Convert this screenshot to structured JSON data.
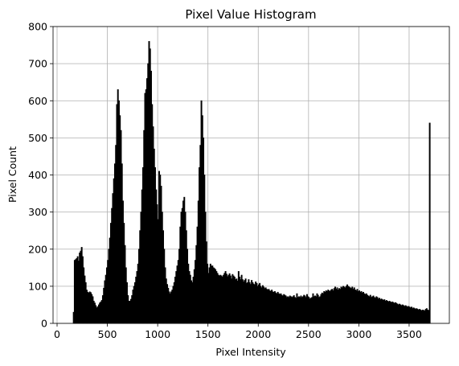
{
  "chart_data": {
    "type": "bar",
    "title": "Pixel Value Histogram",
    "xlabel": "Pixel Intensity",
    "ylabel": "Pixel Count",
    "xlim": [
      -40,
      3900
    ],
    "ylim": [
      0,
      800
    ],
    "grid": true,
    "xticks": [
      0,
      500,
      1000,
      1500,
      2000,
      2500,
      3000,
      3500
    ],
    "yticks": [
      0,
      100,
      200,
      300,
      400,
      500,
      600,
      700,
      800
    ],
    "bar_color": "#000000",
    "bin_width": 10,
    "bins": [
      [
        160,
        30
      ],
      [
        170,
        170
      ],
      [
        180,
        172
      ],
      [
        190,
        175
      ],
      [
        200,
        180
      ],
      [
        210,
        168
      ],
      [
        220,
        190
      ],
      [
        230,
        195
      ],
      [
        240,
        205
      ],
      [
        250,
        180
      ],
      [
        260,
        150
      ],
      [
        270,
        128
      ],
      [
        280,
        110
      ],
      [
        290,
        90
      ],
      [
        300,
        84
      ],
      [
        310,
        82
      ],
      [
        320,
        85
      ],
      [
        330,
        83
      ],
      [
        340,
        78
      ],
      [
        350,
        72
      ],
      [
        360,
        60
      ],
      [
        370,
        55
      ],
      [
        380,
        48
      ],
      [
        390,
        42
      ],
      [
        400,
        45
      ],
      [
        410,
        50
      ],
      [
        420,
        55
      ],
      [
        430,
        58
      ],
      [
        440,
        62
      ],
      [
        450,
        75
      ],
      [
        460,
        95
      ],
      [
        470,
        115
      ],
      [
        480,
        130
      ],
      [
        490,
        150
      ],
      [
        500,
        170
      ],
      [
        510,
        200
      ],
      [
        520,
        230
      ],
      [
        530,
        270
      ],
      [
        540,
        310
      ],
      [
        550,
        350
      ],
      [
        560,
        390
      ],
      [
        570,
        430
      ],
      [
        580,
        480
      ],
      [
        590,
        590
      ],
      [
        600,
        630
      ],
      [
        610,
        600
      ],
      [
        620,
        560
      ],
      [
        630,
        520
      ],
      [
        640,
        430
      ],
      [
        650,
        330
      ],
      [
        660,
        270
      ],
      [
        670,
        210
      ],
      [
        680,
        150
      ],
      [
        690,
        110
      ],
      [
        700,
        75
      ],
      [
        710,
        60
      ],
      [
        720,
        60
      ],
      [
        730,
        65
      ],
      [
        740,
        75
      ],
      [
        750,
        90
      ],
      [
        760,
        100
      ],
      [
        770,
        110
      ],
      [
        780,
        125
      ],
      [
        790,
        140
      ],
      [
        800,
        160
      ],
      [
        810,
        200
      ],
      [
        820,
        250
      ],
      [
        830,
        300
      ],
      [
        840,
        360
      ],
      [
        850,
        420
      ],
      [
        860,
        520
      ],
      [
        870,
        620
      ],
      [
        880,
        630
      ],
      [
        890,
        660
      ],
      [
        900,
        700
      ],
      [
        910,
        760
      ],
      [
        920,
        740
      ],
      [
        930,
        680
      ],
      [
        940,
        590
      ],
      [
        950,
        530
      ],
      [
        960,
        470
      ],
      [
        970,
        420
      ],
      [
        980,
        360
      ],
      [
        990,
        320
      ],
      [
        1000,
        280
      ],
      [
        1010,
        410
      ],
      [
        1020,
        400
      ],
      [
        1030,
        370
      ],
      [
        1040,
        300
      ],
      [
        1050,
        250
      ],
      [
        1060,
        200
      ],
      [
        1070,
        150
      ],
      [
        1080,
        120
      ],
      [
        1090,
        105
      ],
      [
        1100,
        95
      ],
      [
        1110,
        85
      ],
      [
        1120,
        80
      ],
      [
        1130,
        85
      ],
      [
        1140,
        90
      ],
      [
        1150,
        100
      ],
      [
        1160,
        110
      ],
      [
        1170,
        125
      ],
      [
        1180,
        140
      ],
      [
        1190,
        155
      ],
      [
        1200,
        170
      ],
      [
        1210,
        200
      ],
      [
        1220,
        260
      ],
      [
        1230,
        300
      ],
      [
        1240,
        310
      ],
      [
        1250,
        330
      ],
      [
        1260,
        340
      ],
      [
        1270,
        300
      ],
      [
        1280,
        250
      ],
      [
        1290,
        200
      ],
      [
        1300,
        160
      ],
      [
        1310,
        140
      ],
      [
        1320,
        130
      ],
      [
        1330,
        115
      ],
      [
        1340,
        110
      ],
      [
        1350,
        125
      ],
      [
        1360,
        145
      ],
      [
        1370,
        170
      ],
      [
        1380,
        210
      ],
      [
        1390,
        260
      ],
      [
        1400,
        330
      ],
      [
        1410,
        420
      ],
      [
        1420,
        480
      ],
      [
        1430,
        600
      ],
      [
        1440,
        560
      ],
      [
        1450,
        500
      ],
      [
        1460,
        400
      ],
      [
        1470,
        300
      ],
      [
        1480,
        220
      ],
      [
        1490,
        160
      ],
      [
        1500,
        135
      ],
      [
        1510,
        150
      ],
      [
        1520,
        160
      ],
      [
        1530,
        155
      ],
      [
        1540,
        155
      ],
      [
        1550,
        150
      ],
      [
        1560,
        148
      ],
      [
        1570,
        145
      ],
      [
        1580,
        140
      ],
      [
        1590,
        135
      ],
      [
        1600,
        130
      ],
      [
        1610,
        128
      ],
      [
        1620,
        130
      ],
      [
        1630,
        128
      ],
      [
        1640,
        125
      ],
      [
        1650,
        130
      ],
      [
        1660,
        135
      ],
      [
        1670,
        140
      ],
      [
        1680,
        133
      ],
      [
        1690,
        126
      ],
      [
        1700,
        130
      ],
      [
        1710,
        134
      ],
      [
        1720,
        128
      ],
      [
        1730,
        120
      ],
      [
        1740,
        132
      ],
      [
        1750,
        128
      ],
      [
        1760,
        125
      ],
      [
        1770,
        118
      ],
      [
        1780,
        120
      ],
      [
        1790,
        114
      ],
      [
        1800,
        140
      ],
      [
        1810,
        125
      ],
      [
        1820,
        118
      ],
      [
        1830,
        130
      ],
      [
        1840,
        118
      ],
      [
        1850,
        112
      ],
      [
        1860,
        116
      ],
      [
        1870,
        120
      ],
      [
        1880,
        108
      ],
      [
        1890,
        110
      ],
      [
        1900,
        118
      ],
      [
        1910,
        110
      ],
      [
        1920,
        105
      ],
      [
        1930,
        116
      ],
      [
        1940,
        110
      ],
      [
        1950,
        106
      ],
      [
        1960,
        104
      ],
      [
        1970,
        112
      ],
      [
        1980,
        108
      ],
      [
        1990,
        100
      ],
      [
        2000,
        104
      ],
      [
        2010,
        108
      ],
      [
        2020,
        100
      ],
      [
        2030,
        96
      ],
      [
        2040,
        102
      ],
      [
        2050,
        98
      ],
      [
        2060,
        94
      ],
      [
        2070,
        96
      ],
      [
        2080,
        92
      ],
      [
        2090,
        90
      ],
      [
        2100,
        92
      ],
      [
        2110,
        88
      ],
      [
        2120,
        86
      ],
      [
        2130,
        90
      ],
      [
        2140,
        85
      ],
      [
        2150,
        84
      ],
      [
        2160,
        86
      ],
      [
        2170,
        82
      ],
      [
        2180,
        80
      ],
      [
        2190,
        84
      ],
      [
        2200,
        80
      ],
      [
        2210,
        78
      ],
      [
        2220,
        80
      ],
      [
        2230,
        76
      ],
      [
        2240,
        74
      ],
      [
        2250,
        78
      ],
      [
        2260,
        76
      ],
      [
        2270,
        74
      ],
      [
        2280,
        70
      ],
      [
        2290,
        72
      ],
      [
        2300,
        70
      ],
      [
        2310,
        74
      ],
      [
        2320,
        72
      ],
      [
        2330,
        70
      ],
      [
        2340,
        72
      ],
      [
        2350,
        75
      ],
      [
        2360,
        70
      ],
      [
        2370,
        68
      ],
      [
        2380,
        80
      ],
      [
        2390,
        70
      ],
      [
        2400,
        72
      ],
      [
        2410,
        70
      ],
      [
        2420,
        74
      ],
      [
        2430,
        70
      ],
      [
        2440,
        72
      ],
      [
        2450,
        76
      ],
      [
        2460,
        74
      ],
      [
        2470,
        70
      ],
      [
        2480,
        78
      ],
      [
        2490,
        72
      ],
      [
        2500,
        70
      ],
      [
        2510,
        66
      ],
      [
        2520,
        68
      ],
      [
        2530,
        70
      ],
      [
        2540,
        80
      ],
      [
        2550,
        72
      ],
      [
        2560,
        74
      ],
      [
        2570,
        72
      ],
      [
        2580,
        80
      ],
      [
        2590,
        76
      ],
      [
        2600,
        70
      ],
      [
        2610,
        72
      ],
      [
        2620,
        78
      ],
      [
        2630,
        82
      ],
      [
        2640,
        80
      ],
      [
        2650,
        86
      ],
      [
        2660,
        84
      ],
      [
        2670,
        88
      ],
      [
        2680,
        86
      ],
      [
        2690,
        90
      ],
      [
        2700,
        88
      ],
      [
        2710,
        86
      ],
      [
        2720,
        90
      ],
      [
        2730,
        92
      ],
      [
        2740,
        88
      ],
      [
        2750,
        94
      ],
      [
        2760,
        98
      ],
      [
        2770,
        92
      ],
      [
        2780,
        96
      ],
      [
        2790,
        90
      ],
      [
        2800,
        94
      ],
      [
        2810,
        92
      ],
      [
        2820,
        98
      ],
      [
        2830,
        96
      ],
      [
        2840,
        100
      ],
      [
        2850,
        98
      ],
      [
        2860,
        96
      ],
      [
        2870,
        100
      ],
      [
        2880,
        104
      ],
      [
        2890,
        100
      ],
      [
        2900,
        98
      ],
      [
        2910,
        96
      ],
      [
        2920,
        94
      ],
      [
        2930,
        98
      ],
      [
        2940,
        92
      ],
      [
        2950,
        96
      ],
      [
        2960,
        90
      ],
      [
        2970,
        88
      ],
      [
        2980,
        92
      ],
      [
        2990,
        86
      ],
      [
        3000,
        88
      ],
      [
        3010,
        84
      ],
      [
        3020,
        86
      ],
      [
        3030,
        82
      ],
      [
        3040,
        84
      ],
      [
        3050,
        80
      ],
      [
        3060,
        78
      ],
      [
        3070,
        80
      ],
      [
        3080,
        76
      ],
      [
        3090,
        74
      ],
      [
        3100,
        72
      ],
      [
        3110,
        76
      ],
      [
        3120,
        70
      ],
      [
        3130,
        72
      ],
      [
        3140,
        74
      ],
      [
        3150,
        70
      ],
      [
        3160,
        68
      ],
      [
        3170,
        72
      ],
      [
        3180,
        70
      ],
      [
        3190,
        66
      ],
      [
        3200,
        68
      ],
      [
        3210,
        64
      ],
      [
        3220,
        66
      ],
      [
        3230,
        64
      ],
      [
        3240,
        62
      ],
      [
        3250,
        64
      ],
      [
        3260,
        60
      ],
      [
        3270,
        62
      ],
      [
        3280,
        60
      ],
      [
        3290,
        58
      ],
      [
        3300,
        60
      ],
      [
        3310,
        58
      ],
      [
        3320,
        56
      ],
      [
        3330,
        58
      ],
      [
        3340,
        56
      ],
      [
        3350,
        54
      ],
      [
        3360,
        56
      ],
      [
        3370,
        54
      ],
      [
        3380,
        52
      ],
      [
        3390,
        50
      ],
      [
        3400,
        52
      ],
      [
        3410,
        50
      ],
      [
        3420,
        48
      ],
      [
        3430,
        50
      ],
      [
        3440,
        48
      ],
      [
        3450,
        46
      ],
      [
        3460,
        48
      ],
      [
        3470,
        46
      ],
      [
        3480,
        44
      ],
      [
        3490,
        46
      ],
      [
        3500,
        44
      ],
      [
        3510,
        42
      ],
      [
        3520,
        44
      ],
      [
        3530,
        40
      ],
      [
        3540,
        42
      ],
      [
        3550,
        40
      ],
      [
        3560,
        38
      ],
      [
        3570,
        40
      ],
      [
        3580,
        38
      ],
      [
        3590,
        36
      ],
      [
        3600,
        38
      ],
      [
        3610,
        36
      ],
      [
        3620,
        34
      ],
      [
        3630,
        36
      ],
      [
        3640,
        35
      ],
      [
        3650,
        34
      ],
      [
        3660,
        38
      ],
      [
        3670,
        40
      ],
      [
        3680,
        36
      ],
      [
        3690,
        35
      ],
      [
        3700,
        540
      ]
    ]
  }
}
